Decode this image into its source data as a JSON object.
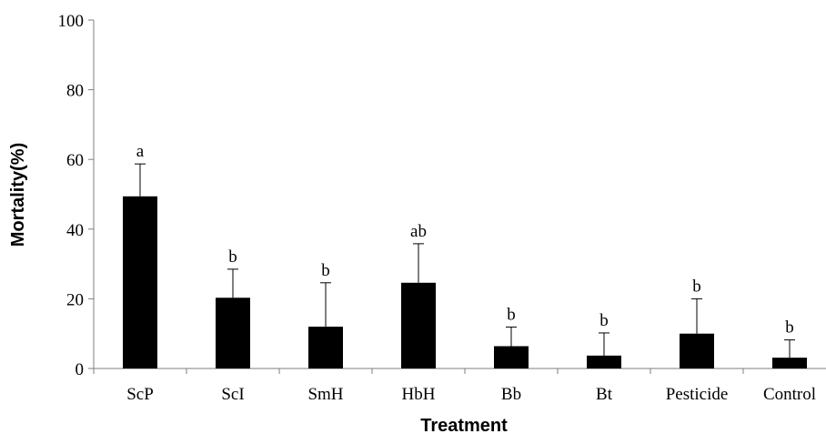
{
  "chart_data": {
    "type": "bar",
    "xlabel": "Treatment",
    "ylabel": "Mortality(%)",
    "ylim": [
      0,
      100
    ],
    "yticks": [
      0,
      20,
      40,
      60,
      80,
      100
    ],
    "grid": false,
    "legend": "none",
    "bar_color": "#000000",
    "categories": [
      "ScP",
      "ScI",
      "SmH",
      "HbH",
      "Bb",
      "Bt",
      "Pesticide",
      "Control"
    ],
    "values": [
      49.4,
      20.3,
      12.0,
      24.6,
      6.4,
      3.7,
      10.0,
      3.1
    ],
    "error_plus": [
      9.3,
      8.2,
      12.6,
      11.2,
      5.5,
      6.5,
      10.0,
      5.1
    ],
    "significance": [
      "a",
      "b",
      "b",
      "ab",
      "b",
      "b",
      "b",
      "b"
    ]
  }
}
